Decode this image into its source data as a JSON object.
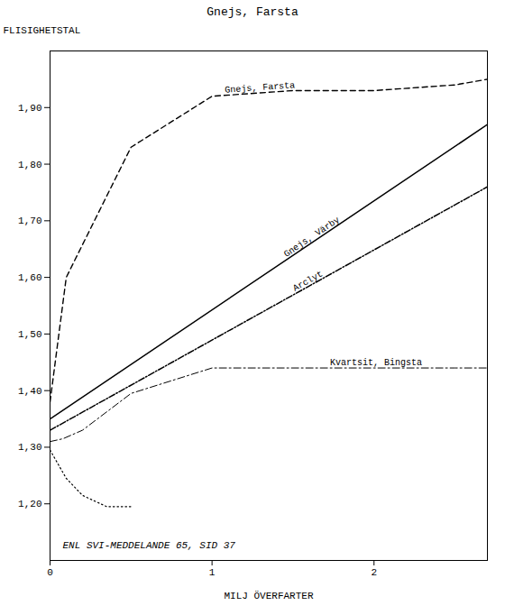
{
  "chart_data": {
    "type": "line",
    "title": "Gnejs, Farsta",
    "xlabel": "MILJ ÖVERFARTER",
    "ylabel": "FLISIGHETSTAL",
    "annotation": "ENL SVI-MEDDELANDE 65, SID 37",
    "xlim": [
      0,
      2.7
    ],
    "ylim": [
      1.1,
      2.0
    ],
    "xticks": [
      0,
      1,
      2
    ],
    "yticks": [
      {
        "value": 1.2,
        "label": "1,20"
      },
      {
        "value": 1.3,
        "label": "1,30"
      },
      {
        "value": 1.4,
        "label": "1,40"
      },
      {
        "value": 1.5,
        "label": "1,50"
      },
      {
        "value": 1.6,
        "label": "1,60"
      },
      {
        "value": 1.7,
        "label": "1,70"
      },
      {
        "value": 1.8,
        "label": "1,80"
      },
      {
        "value": 1.9,
        "label": "1,90"
      }
    ],
    "grid": false,
    "series": [
      {
        "name": "Gnejs, Farsta",
        "color": "black",
        "line_style": "dashed",
        "x": [
          0,
          0.1,
          0.5,
          1.0,
          1.5,
          2.0,
          2.5,
          2.7
        ],
        "values": [
          1.38,
          1.6,
          1.83,
          1.92,
          1.93,
          1.93,
          1.94,
          1.95
        ]
      },
      {
        "name": "Gnejs, Värby",
        "color": "black",
        "line_style": "solid",
        "x": [
          0,
          2.7
        ],
        "values": [
          1.35,
          1.87
        ]
      },
      {
        "name": "Arclyt",
        "color": "black",
        "line_style": "dashdot",
        "x": [
          0,
          2.7
        ],
        "values": [
          1.33,
          1.76
        ]
      },
      {
        "name": "Kvartsit, Bingsta",
        "color": "black",
        "line_style": "dashdot",
        "x": [
          0,
          0.08,
          0.2,
          0.5,
          1.0,
          1.5,
          2.0,
          2.5,
          2.7
        ],
        "values": [
          1.31,
          1.315,
          1.33,
          1.395,
          1.44,
          1.44,
          1.44,
          1.44,
          1.44
        ]
      },
      {
        "name": null,
        "color": "black",
        "line_style": "dotted",
        "x": [
          0,
          0.1,
          0.2,
          0.35,
          0.5
        ],
        "values": [
          1.295,
          1.245,
          1.215,
          1.195,
          1.195
        ]
      }
    ]
  }
}
